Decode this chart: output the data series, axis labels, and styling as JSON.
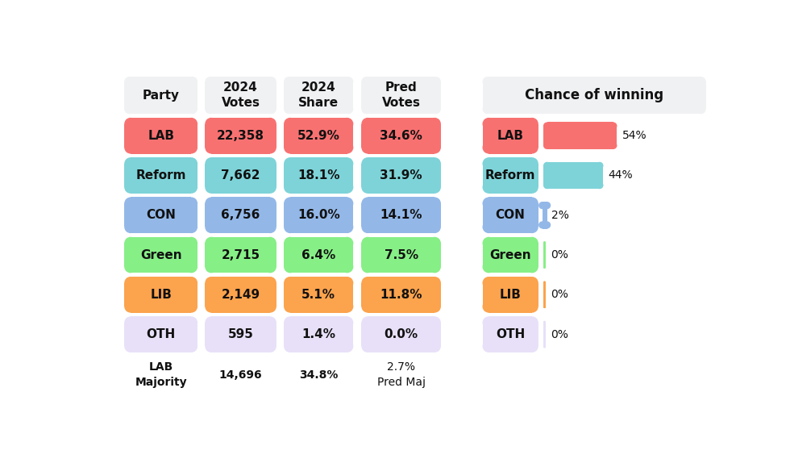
{
  "parties": [
    "LAB",
    "Reform",
    "CON",
    "Green",
    "LIB",
    "OTH"
  ],
  "votes_2024": [
    "22,358",
    "7,662",
    "6,756",
    "2,715",
    "2,149",
    "595"
  ],
  "share_2024": [
    "52.9%",
    "18.1%",
    "16.0%",
    "6.4%",
    "5.1%",
    "1.4%"
  ],
  "pred_votes": [
    "34.6%",
    "31.9%",
    "14.1%",
    "7.5%",
    "11.8%",
    "0.0%"
  ],
  "chance": [
    54,
    44,
    2,
    0,
    0,
    0
  ],
  "chance_labels": [
    "54%",
    "44%",
    "2%",
    "0%",
    "0%",
    "0%"
  ],
  "party_colors": [
    "#F87171",
    "#7DD3D8",
    "#93B8E8",
    "#86EF86",
    "#FCA34D",
    "#E8E0F8"
  ],
  "header_bg": "#F0F1F3",
  "col_headers": [
    "Party",
    "2024\nVotes",
    "2024\nShare",
    "Pred\nVotes"
  ],
  "majority_label": "LAB\nMajority",
  "majority_votes": "14,696",
  "majority_share": "34.8%",
  "majority_pred": "2.7%\nPred Maj",
  "bg_color": "#FFFFFF",
  "text_color": "#111111",
  "font_size": 11,
  "header_font_size": 11
}
